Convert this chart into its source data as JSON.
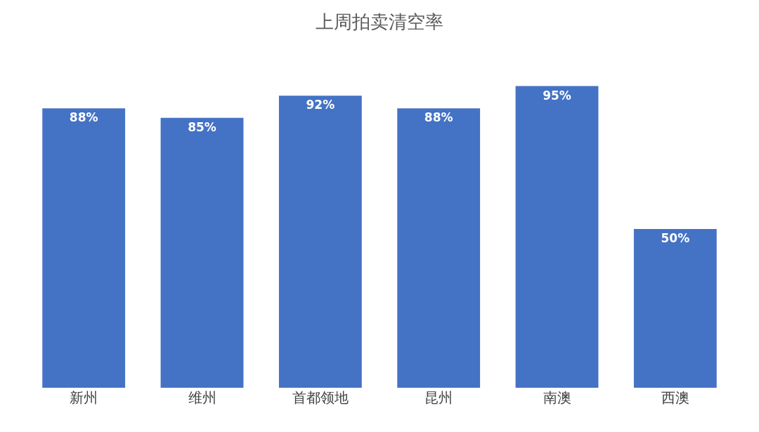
{
  "chart_data": {
    "type": "bar",
    "title": "上周拍卖清空率",
    "categories": [
      "新州",
      "维州",
      "首都领地",
      "昆州",
      "南澳",
      "西澳"
    ],
    "values": [
      88,
      85,
      92,
      88,
      95,
      50
    ],
    "value_labels": [
      "88%",
      "85%",
      "92%",
      "88%",
      "95%",
      "50%"
    ],
    "color": "#4472c4",
    "grid": false,
    "legend": false
  }
}
